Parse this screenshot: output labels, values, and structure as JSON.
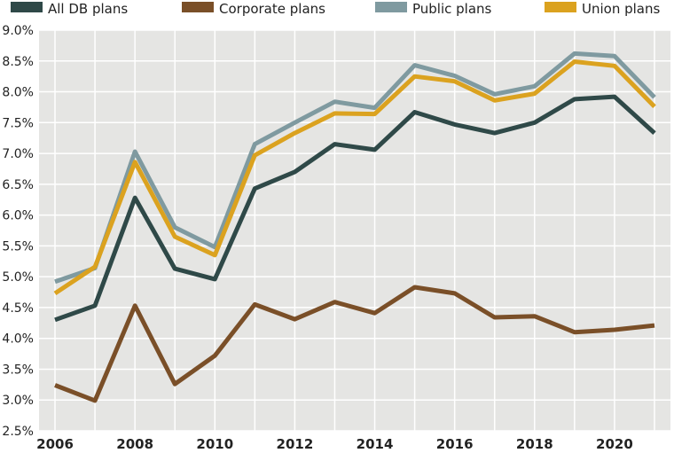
{
  "chart_data": {
    "type": "line",
    "x": [
      2006,
      2007,
      2008,
      2009,
      2010,
      2011,
      2012,
      2013,
      2014,
      2015,
      2016,
      2017,
      2018,
      2019,
      2020,
      2021
    ],
    "series": [
      {
        "name": "All DB plans",
        "color": "#2f4948",
        "values": [
          4.3,
          4.53,
          6.28,
          5.13,
          4.96,
          6.43,
          6.7,
          7.15,
          7.06,
          7.67,
          7.47,
          7.33,
          7.5,
          7.88,
          7.92,
          7.33
        ]
      },
      {
        "name": "Corporate plans",
        "color": "#7a4f28",
        "values": [
          3.24,
          2.99,
          4.53,
          3.26,
          3.72,
          4.55,
          4.31,
          4.59,
          4.41,
          4.83,
          4.73,
          4.34,
          4.36,
          4.1,
          4.14,
          4.21
        ]
      },
      {
        "name": "Public plans",
        "color": "#7f9aa0",
        "values": [
          4.92,
          5.14,
          7.03,
          5.8,
          5.48,
          7.15,
          7.5,
          7.84,
          7.74,
          8.43,
          8.26,
          7.96,
          8.09,
          8.62,
          8.58,
          7.91
        ]
      },
      {
        "name": "Union plans",
        "color": "#dba21f",
        "values": [
          4.73,
          5.16,
          6.86,
          5.65,
          5.35,
          6.97,
          7.33,
          7.65,
          7.64,
          8.25,
          8.17,
          7.86,
          7.97,
          8.49,
          8.42,
          7.76
        ]
      }
    ],
    "ylim": [
      2.5,
      9.0
    ],
    "yticks": [
      "2.5%",
      "3.0%",
      "3.5%",
      "4.0%",
      "4.5%",
      "5.0%",
      "5.5%",
      "6.0%",
      "6.5%",
      "7.0%",
      "7.5%",
      "8.0%",
      "8.5%",
      "9.0%"
    ],
    "ytick_values": [
      2.5,
      3.0,
      3.5,
      4.0,
      4.5,
      5.0,
      5.5,
      6.0,
      6.5,
      7.0,
      7.5,
      8.0,
      8.5,
      9.0
    ],
    "xticks": [
      "2006",
      "2008",
      "2010",
      "2012",
      "2014",
      "2016",
      "2018",
      "2020"
    ],
    "xtick_values": [
      2006,
      2008,
      2010,
      2012,
      2014,
      2016,
      2018,
      2020
    ],
    "xlim": [
      2005.6,
      2021.4
    ],
    "grid": true,
    "plot_background": "#e5e5e3",
    "grid_color": "#ffffff",
    "legend_position": "top"
  }
}
